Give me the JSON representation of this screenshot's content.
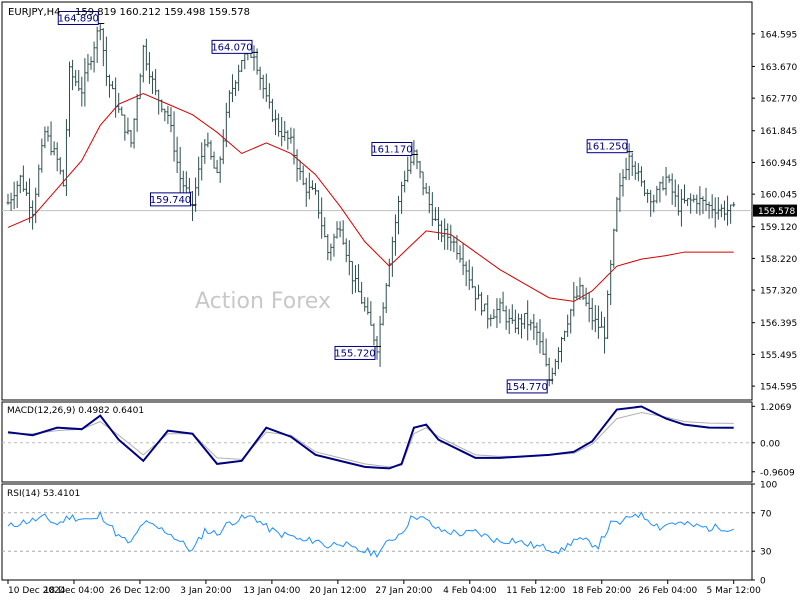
{
  "header": {
    "symbol_timeframe": "EURJPY,H4",
    "ohlc": "159.819 160.212 159.498 159.578"
  },
  "watermark": "Action Forex",
  "colors": {
    "bars": "#2f4f4f",
    "moving_average": "#d40000",
    "macd_line": "#000080",
    "signal_line": "#b0b0b0",
    "rsi_line": "#1e90ff",
    "last_price_line": "#c0c0c0",
    "frame": "#000000",
    "label_text": "#000080"
  },
  "chart_data": [
    {
      "type": "line",
      "subtype": "ohlc-bars",
      "title": "EURJPY,H4",
      "ylim": [
        154.2,
        165.5
      ],
      "y_ticks": [
        "164.595",
        "163.670",
        "162.770",
        "161.845",
        "160.945",
        "160.045",
        "159.120",
        "158.220",
        "157.320",
        "156.395",
        "155.495",
        "154.595"
      ],
      "last_price": "159.578",
      "x_ticks": [
        "10 Dec 2024",
        "18 Dec 04:00",
        "26 Dec 12:00",
        "3 Jan 20:00",
        "13 Jan 04:00",
        "20 Jan 12:00",
        "27 Jan 20:00",
        "4 Feb 04:00",
        "11 Feb 12:00",
        "18 Feb 20:00",
        "26 Feb 04:00",
        "5 Mar 12:00"
      ],
      "series": [
        {
          "name": "price",
          "x": [
            0,
            4,
            8,
            12,
            16,
            18,
            20,
            24,
            28,
            30,
            32,
            36,
            40,
            44,
            48,
            52,
            56,
            60,
            64,
            68,
            72,
            76,
            80,
            84,
            88,
            92,
            96,
            100,
            104,
            108,
            112,
            116,
            120,
            124,
            128,
            132,
            136,
            140,
            144,
            148,
            152,
            156,
            160,
            164,
            168,
            172,
            176,
            180,
            184,
            186,
            190,
            194,
            198,
            202,
            206,
            210,
            214,
            218,
            220,
            224,
            228,
            232,
            236
          ],
          "y": [
            159.8,
            160.5,
            159.6,
            161.8,
            161.0,
            160.3,
            163.5,
            163.0,
            164.3,
            164.89,
            163.4,
            162.4,
            161.5,
            164.2,
            162.9,
            162.3,
            160.5,
            159.74,
            161.6,
            160.5,
            162.8,
            163.9,
            164.07,
            162.7,
            161.9,
            161.5,
            160.3,
            160.0,
            158.4,
            159.2,
            157.7,
            156.8,
            155.72,
            158.2,
            160.3,
            161.17,
            160.0,
            159.0,
            158.8,
            158.2,
            157.2,
            156.6,
            156.8,
            156.3,
            156.5,
            156.1,
            154.77,
            156.0,
            157.0,
            157.3,
            156.5,
            156.1,
            159.8,
            161.25,
            160.3,
            159.9,
            160.5,
            159.7,
            159.8,
            159.9,
            159.7,
            159.6,
            159.578
          ]
        },
        {
          "name": "moving average",
          "x": [
            0,
            8,
            16,
            24,
            30,
            36,
            44,
            52,
            60,
            68,
            76,
            84,
            92,
            100,
            108,
            116,
            124,
            130,
            136,
            144,
            152,
            160,
            168,
            176,
            184,
            190,
            198,
            206,
            214,
            220,
            228,
            236
          ],
          "y": [
            159.1,
            159.4,
            160.2,
            161.0,
            162.0,
            162.6,
            162.9,
            162.6,
            162.3,
            161.8,
            161.2,
            161.5,
            161.2,
            160.6,
            159.7,
            158.7,
            158.0,
            158.5,
            159.0,
            158.9,
            158.4,
            157.9,
            157.5,
            157.1,
            157.0,
            157.3,
            158.0,
            158.2,
            158.3,
            158.4,
            158.4,
            158.4
          ]
        }
      ],
      "labels": [
        {
          "text": "164.890",
          "x": 30,
          "y": 164.89
        },
        {
          "text": "159.740",
          "x": 60,
          "y": 159.74
        },
        {
          "text": "164.070",
          "x": 80,
          "y": 164.07
        },
        {
          "text": "155.720",
          "x": 120,
          "y": 155.72
        },
        {
          "text": "161.170",
          "x": 132,
          "y": 161.17
        },
        {
          "text": "154.770",
          "x": 176,
          "y": 154.77
        },
        {
          "text": "161.250",
          "x": 202,
          "y": 161.25
        }
      ]
    },
    {
      "type": "line",
      "title": "MACD(12,26,9) 0.4982 0.6401",
      "ylim": [
        -1.3,
        1.35
      ],
      "y_ticks": [
        "1.2069",
        "0.00",
        "-0.9609"
      ],
      "series": [
        {
          "name": "MACD",
          "x": [
            0,
            8,
            16,
            24,
            30,
            36,
            44,
            52,
            60,
            68,
            76,
            84,
            92,
            100,
            108,
            116,
            124,
            128,
            132,
            136,
            140,
            144,
            148,
            152,
            160,
            168,
            176,
            184,
            190,
            198,
            206,
            214,
            220,
            228,
            236
          ],
          "y": [
            0.35,
            0.25,
            0.5,
            0.45,
            0.9,
            0.1,
            -0.6,
            0.4,
            0.3,
            -0.7,
            -0.6,
            0.5,
            0.2,
            -0.4,
            -0.6,
            -0.8,
            -0.85,
            -0.7,
            0.5,
            0.6,
            0.1,
            -0.1,
            -0.3,
            -0.5,
            -0.5,
            -0.45,
            -0.4,
            -0.3,
            0.05,
            1.1,
            1.2,
            0.8,
            0.6,
            0.5,
            0.4982
          ]
        },
        {
          "name": "Signal",
          "x": [
            0,
            8,
            16,
            24,
            30,
            36,
            44,
            52,
            60,
            68,
            76,
            84,
            92,
            100,
            108,
            116,
            124,
            128,
            132,
            136,
            140,
            144,
            148,
            152,
            160,
            168,
            176,
            184,
            190,
            198,
            206,
            214,
            220,
            228,
            236
          ],
          "y": [
            0.3,
            0.3,
            0.4,
            0.45,
            0.7,
            0.25,
            -0.4,
            0.3,
            0.3,
            -0.5,
            -0.55,
            0.35,
            0.25,
            -0.3,
            -0.5,
            -0.7,
            -0.8,
            -0.75,
            0.3,
            0.5,
            0.2,
            0.0,
            -0.2,
            -0.4,
            -0.45,
            -0.45,
            -0.4,
            -0.35,
            -0.05,
            0.8,
            1.0,
            0.85,
            0.7,
            0.65,
            0.6401
          ]
        }
      ]
    },
    {
      "type": "line",
      "title": "RSI(14) 53.4101",
      "ylim": [
        0,
        100
      ],
      "y_ticks": [
        "100",
        "70",
        "30",
        "0"
      ],
      "levels": [
        70,
        30
      ],
      "series": [
        {
          "name": "RSI",
          "x": [
            0,
            4,
            8,
            12,
            16,
            20,
            24,
            28,
            30,
            32,
            36,
            40,
            44,
            48,
            52,
            56,
            60,
            64,
            68,
            72,
            76,
            80,
            84,
            88,
            92,
            96,
            100,
            104,
            108,
            112,
            116,
            120,
            124,
            128,
            132,
            136,
            140,
            144,
            148,
            152,
            156,
            160,
            164,
            168,
            172,
            176,
            180,
            184,
            188,
            192,
            196,
            200,
            204,
            208,
            212,
            216,
            220,
            224,
            228,
            232,
            236
          ],
          "y": [
            55,
            60,
            62,
            65,
            58,
            66,
            64,
            62,
            68,
            62,
            45,
            38,
            60,
            55,
            50,
            40,
            30,
            52,
            48,
            60,
            64,
            66,
            55,
            48,
            46,
            40,
            42,
            35,
            40,
            32,
            30,
            28,
            40,
            50,
            68,
            62,
            52,
            50,
            48,
            50,
            45,
            40,
            42,
            38,
            35,
            33,
            30,
            42,
            40,
            36,
            58,
            60,
            70,
            64,
            55,
            60,
            58,
            56,
            54,
            55,
            53.41
          ]
        }
      ]
    }
  ]
}
